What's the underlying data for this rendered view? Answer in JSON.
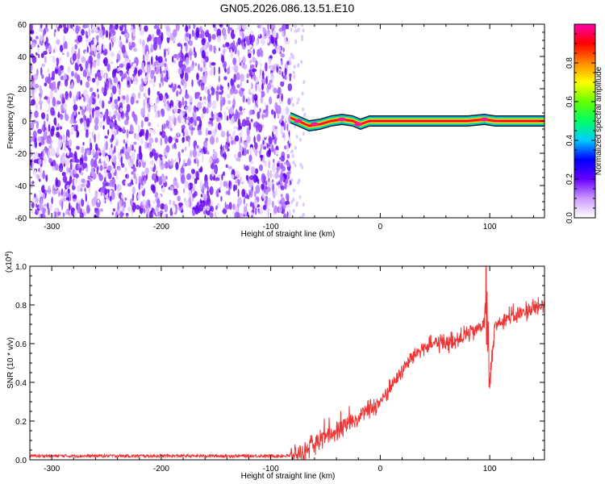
{
  "title": "GN05.2026.086.13.51.E10",
  "chart_data": [
    {
      "type": "heatmap",
      "xlabel": "Height of straight line (km)",
      "ylabel": "Frequency (Hz)",
      "xlim": [
        -320,
        150
      ],
      "ylim": [
        -60,
        60
      ],
      "x_ticks": [
        -300,
        -200,
        -100,
        0,
        100
      ],
      "y_ticks": [
        -60,
        -40,
        -20,
        0,
        20,
        40,
        60
      ],
      "noise_region_x": [
        -320,
        -82
      ],
      "signal_band": [
        {
          "x": -82,
          "f": 2
        },
        {
          "x": -75,
          "f": 0
        },
        {
          "x": -65,
          "f": -3
        },
        {
          "x": -55,
          "f": -2
        },
        {
          "x": -45,
          "f": 0
        },
        {
          "x": -35,
          "f": 1
        },
        {
          "x": -25,
          "f": 0
        },
        {
          "x": -18,
          "f": -2
        },
        {
          "x": -10,
          "f": 0
        },
        {
          "x": 10,
          "f": 0
        },
        {
          "x": 50,
          "f": 0
        },
        {
          "x": 80,
          "f": 0
        },
        {
          "x": 95,
          "f": 1
        },
        {
          "x": 105,
          "f": 0
        },
        {
          "x": 150,
          "f": 0
        }
      ],
      "colorbar": {
        "label": "Normalized spectral amplitude",
        "range": [
          0,
          1
        ],
        "ticks": [
          "0.0",
          "0.2",
          "0.4",
          "0.6",
          "0.8"
        ],
        "colors": [
          "#ffffff",
          "#cc99ff",
          "#6600ff",
          "#0000ff",
          "#00ccff",
          "#00ff66",
          "#66ff00",
          "#ffff00",
          "#ff8800",
          "#ff0000",
          "#ff00aa"
        ]
      }
    },
    {
      "type": "line",
      "xlabel": "Height of straight line (km)",
      "ylabel": "SNR (10 * v/v)",
      "y_multiplier": "(x10",
      "y_multiplier_exp": "4",
      "y_multiplier_close": ")",
      "xlim": [
        -320,
        150
      ],
      "ylim": [
        0,
        1.0
      ],
      "x_ticks": [
        -300,
        -200,
        -100,
        0,
        100
      ],
      "y_ticks": [
        "0.0",
        "0.2",
        "0.4",
        "0.6",
        "0.8",
        "1.0"
      ],
      "color": "#ee3333",
      "series": [
        {
          "x": [
            -320,
            -250,
            -200,
            -150,
            -100,
            -90,
            -80,
            -70,
            -60,
            -50,
            -40,
            -30,
            -20,
            -10,
            0,
            10,
            20,
            30,
            40,
            50,
            60,
            70,
            80,
            90,
            95,
            97,
            99,
            105,
            110,
            120,
            130,
            140,
            150
          ],
          "y": [
            0.02,
            0.02,
            0.02,
            0.02,
            0.02,
            0.02,
            0.02,
            0.04,
            0.08,
            0.12,
            0.15,
            0.18,
            0.22,
            0.26,
            0.3,
            0.38,
            0.46,
            0.54,
            0.58,
            0.6,
            0.61,
            0.62,
            0.65,
            0.68,
            0.7,
            0.95,
            0.35,
            0.7,
            0.72,
            0.74,
            0.76,
            0.78,
            0.8
          ]
        }
      ]
    }
  ]
}
